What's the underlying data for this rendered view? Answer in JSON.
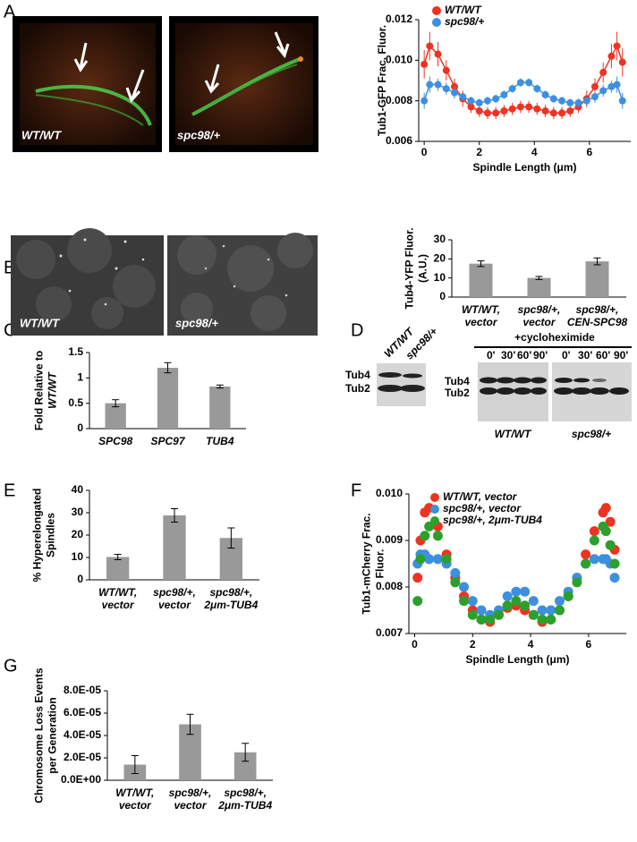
{
  "panel_labels": [
    "A",
    "B",
    "C",
    "D",
    "E",
    "F",
    "G"
  ],
  "micrographs": {
    "a": [
      "WT/WT",
      "spc98/+"
    ],
    "b": [
      "WT/WT",
      "spc98/+"
    ]
  },
  "blot": {
    "strains": [
      "WT/WT",
      "spc98/+"
    ],
    "bands": [
      "Tub4",
      "Tub2"
    ],
    "treatment": "+cycloheximide",
    "timepoints": [
      "0'",
      "30'",
      "60'",
      "90'"
    ]
  },
  "chart_data": [
    {
      "type": "line",
      "ylabel": [
        "Tub1-GFP Frac. Fluor."
      ],
      "xlabel": "Spindle Length (μm)",
      "x": [
        0,
        0.2,
        0.5,
        0.8,
        1.1,
        1.4,
        1.7,
        2.0,
        2.3,
        2.6,
        2.9,
        3.2,
        3.5,
        3.8,
        4.1,
        4.4,
        4.7,
        5.0,
        5.3,
        5.6,
        5.9,
        6.2,
        6.5,
        6.8,
        7.0,
        7.2
      ],
      "series": [
        {
          "name": "WT/WT",
          "color": "#ee3322",
          "values": [
            0.0098,
            0.0107,
            0.0103,
            0.0095,
            0.0087,
            0.0081,
            0.0077,
            0.0075,
            0.0074,
            0.0074,
            0.0075,
            0.0076,
            0.0077,
            0.0077,
            0.0076,
            0.0075,
            0.0074,
            0.0074,
            0.0075,
            0.0077,
            0.0081,
            0.0087,
            0.0094,
            0.0102,
            0.0107,
            0.0099
          ],
          "errors": [
            0.0007,
            0.0007,
            0.0006,
            0.0005,
            0.0004,
            0.0004,
            0.0003,
            0.0003,
            0.0003,
            0.0003,
            0.0003,
            0.0003,
            0.0003,
            0.0003,
            0.0003,
            0.0003,
            0.0003,
            0.0003,
            0.0003,
            0.0003,
            0.0004,
            0.0004,
            0.0005,
            0.0006,
            0.0007,
            0.0007
          ]
        },
        {
          "name": "spc98/+",
          "color": "#3d8fe0",
          "values": [
            0.008,
            0.0088,
            0.0088,
            0.0086,
            0.0084,
            0.0082,
            0.008,
            0.0079,
            0.008,
            0.0081,
            0.0083,
            0.0086,
            0.0089,
            0.0089,
            0.0086,
            0.0083,
            0.0081,
            0.008,
            0.0079,
            0.0079,
            0.008,
            0.0082,
            0.0085,
            0.0087,
            0.0088,
            0.008
          ],
          "errors": [
            0.0004,
            0.0004,
            0.0003,
            0.0003,
            0.0003,
            0.0002,
            0.0002,
            0.0002,
            0.0002,
            0.0002,
            0.0002,
            0.0002,
            0.0002,
            0.0002,
            0.0002,
            0.0002,
            0.0002,
            0.0002,
            0.0002,
            0.0002,
            0.0002,
            0.0003,
            0.0003,
            0.0003,
            0.0004,
            0.0004
          ]
        }
      ],
      "xlim": [
        -0.2,
        7.5
      ],
      "xticks": [
        0,
        2,
        4,
        6
      ],
      "ylim": [
        0.006,
        0.012
      ],
      "yticks": [
        0.006,
        0.008,
        {
          "value": 0.01,
          "label": "0.010"
        },
        0.012
      ]
    },
    {
      "type": "bar",
      "ylabel": [
        "Tub4-YFP  Fluor.",
        "(A.U.)"
      ],
      "categories": [
        [
          "WT/WT,",
          "vector"
        ],
        [
          "spc98/+,",
          "vector"
        ],
        [
          "spc98/+,",
          "CEN-SPC98"
        ]
      ],
      "values": [
        17.5,
        10,
        18.7
      ],
      "errors": [
        1.5,
        0.8,
        1.8
      ],
      "color": "#999999",
      "ylim": [
        0,
        30
      ],
      "yticks": [
        0,
        10,
        20,
        30
      ]
    },
    {
      "type": "bar",
      "ylabel": [
        "Fold Relative to",
        "WT/WT"
      ],
      "categories": [
        [
          "SPC98"
        ],
        [
          "SPC97"
        ],
        [
          "TUB4"
        ]
      ],
      "values": [
        0.5,
        1.2,
        0.83
      ],
      "errors": [
        0.07,
        0.1,
        0.03
      ],
      "color": "#999999",
      "ylim": [
        0,
        1.5
      ],
      "yticks": [
        0,
        0.5,
        1,
        1.5
      ]
    },
    {
      "type": "bar",
      "ylabel": [
        "% Hyperelongated",
        "Spindles"
      ],
      "categories": [
        [
          "WT/WT,",
          "vector"
        ],
        [
          "spc98/+,",
          "vector"
        ],
        [
          "spc98/+,",
          "2μm-TUB4"
        ]
      ],
      "values": [
        10.2,
        28.8,
        18.7
      ],
      "errors": [
        1.2,
        3,
        4.5
      ],
      "color": "#999999",
      "ylim": [
        0,
        40
      ],
      "yticks": [
        0,
        10,
        20,
        30,
        40
      ]
    },
    {
      "type": "scatter",
      "ylabel": [
        "Tub1-mCherry Frac.",
        "Fluor."
      ],
      "xlabel": "Spindle Length (μm)",
      "x": [
        0.1,
        0.2,
        0.35,
        0.5,
        0.8,
        1.1,
        1.4,
        1.7,
        2.0,
        2.3,
        2.6,
        2.9,
        3.2,
        3.5,
        3.8,
        4.1,
        4.4,
        4.7,
        5.0,
        5.3,
        5.6,
        5.9,
        6.2,
        6.5,
        6.6,
        6.75,
        6.9
      ],
      "series": [
        {
          "name": "WT/WT, vector",
          "color": "#ee3322",
          "values": [
            0.0082,
            0.009,
            0.0096,
            0.0097,
            0.0093,
            0.0087,
            0.0082,
            0.0078,
            0.0075,
            0.0073,
            0.00725,
            0.0074,
            0.00755,
            0.0076,
            0.0075,
            0.0074,
            0.00725,
            0.0073,
            0.0075,
            0.0078,
            0.0082,
            0.0087,
            0.0092,
            0.0096,
            0.0097,
            0.0094,
            0.0088
          ]
        },
        {
          "name": "spc98/+, vector",
          "color": "#3d8fe0",
          "values": [
            0.0085,
            0.0087,
            0.0087,
            0.0086,
            0.0086,
            0.0085,
            0.0083,
            0.008,
            0.0077,
            0.0075,
            0.0074,
            0.0075,
            0.0078,
            0.0079,
            0.0079,
            0.0077,
            0.0075,
            0.0075,
            0.0077,
            0.0079,
            0.0082,
            0.0085,
            0.0086,
            0.0086,
            0.0086,
            0.0085,
            0.0082
          ]
        },
        {
          "name": "spc98/+, 2μm-TUB4",
          "color": "#2ca02c",
          "values": [
            0.0077,
            0.0086,
            0.0091,
            0.0093,
            0.0091,
            0.0086,
            0.0081,
            0.0077,
            0.0074,
            0.0073,
            0.0073,
            0.0074,
            0.0076,
            0.0077,
            0.0076,
            0.0074,
            0.0073,
            0.0073,
            0.0075,
            0.0078,
            0.0081,
            0.0085,
            0.009,
            0.0093,
            0.0092,
            0.0089,
            0.0085
          ]
        }
      ],
      "xlim": [
        -0.2,
        7.3
      ],
      "xticks": [
        0,
        2,
        4,
        6
      ],
      "ylim": [
        0.007,
        0.01
      ],
      "yticks": [
        0.007,
        0.008,
        0.009,
        {
          "value": 0.01,
          "label": "0.010"
        }
      ]
    },
    {
      "type": "bar",
      "ylabel": [
        "Chromosome Loss Events",
        "per Generation"
      ],
      "categories": [
        [
          "WT/WT,",
          "vector"
        ],
        [
          "spc98/+,",
          "vector"
        ],
        [
          "spc98/+,",
          "2μm-TUB4"
        ]
      ],
      "values": [
        1.4e-05,
        5e-05,
        2.5e-05
      ],
      "errors": [
        8e-06,
        9e-06,
        8e-06
      ],
      "color": "#999999",
      "ylim": [
        0,
        8e-05
      ],
      "yticks": [
        {
          "value": 0,
          "label": "0.0E+00"
        },
        {
          "value": 2e-05,
          "label": "2.0E-05"
        },
        {
          "value": 4e-05,
          "label": "4.0E-05"
        },
        {
          "value": 6e-05,
          "label": "6.0E-05"
        },
        {
          "value": 8e-05,
          "label": "8.0E-05"
        }
      ]
    }
  ]
}
